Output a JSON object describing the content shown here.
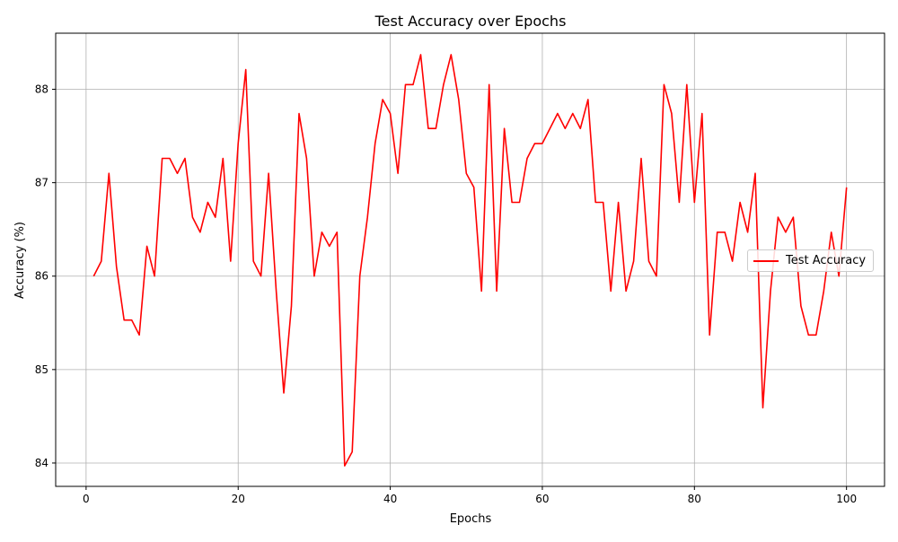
{
  "chart_data": {
    "type": "line",
    "title": "Test Accuracy over Epochs",
    "xlabel": "Epochs",
    "ylabel": "Accuracy (%)",
    "xlim": [
      -4,
      105
    ],
    "ylim": [
      83.75,
      88.6
    ],
    "xticks": [
      0,
      20,
      40,
      60,
      80,
      100
    ],
    "yticks": [
      84,
      85,
      86,
      87,
      88
    ],
    "grid": true,
    "legend_position": "center-right",
    "series": [
      {
        "name": "Test Accuracy",
        "color": "#ff0000",
        "x": [
          1,
          2,
          3,
          4,
          5,
          6,
          7,
          8,
          9,
          10,
          11,
          12,
          13,
          14,
          15,
          16,
          17,
          18,
          19,
          20,
          21,
          22,
          23,
          24,
          25,
          26,
          27,
          28,
          29,
          30,
          31,
          32,
          33,
          34,
          35,
          36,
          37,
          38,
          39,
          40,
          41,
          42,
          43,
          44,
          45,
          46,
          47,
          48,
          49,
          50,
          51,
          52,
          53,
          54,
          55,
          56,
          57,
          58,
          59,
          60,
          61,
          62,
          63,
          64,
          65,
          66,
          67,
          68,
          69,
          70,
          71,
          72,
          73,
          74,
          75,
          76,
          77,
          78,
          79,
          80,
          81,
          82,
          83,
          84,
          85,
          86,
          87,
          88,
          89,
          90,
          91,
          92,
          93,
          94,
          95,
          96,
          97,
          98,
          99,
          100
        ],
        "values": [
          86.0,
          86.16,
          87.1,
          86.1,
          85.53,
          85.53,
          85.37,
          86.32,
          86.0,
          87.26,
          87.26,
          87.1,
          87.26,
          86.63,
          86.47,
          86.79,
          86.63,
          87.26,
          86.16,
          87.42,
          88.21,
          86.16,
          86.0,
          87.1,
          85.84,
          84.75,
          85.68,
          87.74,
          87.26,
          86.0,
          86.47,
          86.32,
          86.47,
          83.97,
          84.12,
          86.0,
          86.63,
          87.42,
          87.89,
          87.74,
          87.1,
          88.05,
          88.05,
          88.37,
          87.58,
          87.58,
          88.05,
          88.37,
          87.89,
          87.1,
          86.95,
          85.84,
          88.05,
          85.84,
          87.58,
          86.79,
          86.79,
          87.26,
          87.42,
          87.42,
          87.58,
          87.74,
          87.58,
          87.74,
          87.58,
          87.89,
          86.79,
          86.79,
          85.84,
          86.79,
          85.84,
          86.16,
          87.26,
          86.16,
          86.0,
          88.05,
          87.74,
          86.79,
          88.05,
          86.79,
          87.74,
          85.37,
          86.47,
          86.47,
          86.16,
          86.79,
          86.47,
          87.1,
          84.59,
          85.84,
          86.63,
          86.47,
          86.63,
          85.68,
          85.37,
          85.37,
          85.84,
          86.47,
          86.0,
          86.95
        ]
      }
    ]
  }
}
